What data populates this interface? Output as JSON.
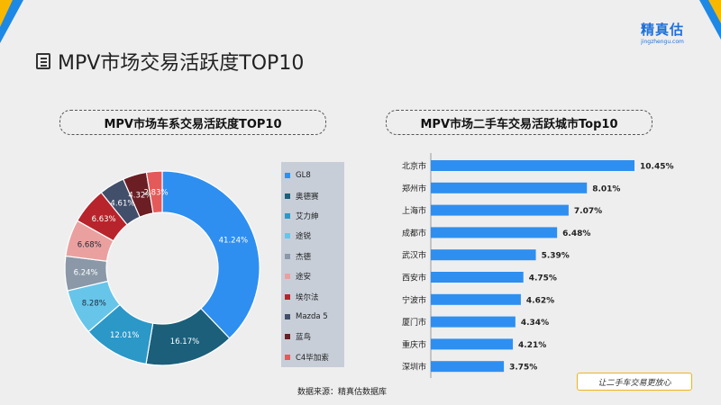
{
  "page": {
    "title": "MPV市场交易活跃度TOP10",
    "brand": "精真估",
    "brand_sub": "jingzhengu.com",
    "source": "数据来源：精真估数据库",
    "slogan": "让二手车交易更放心",
    "brand_blue": "#1e88e5",
    "brand_yellow": "#f9b800"
  },
  "chart_data": [
    {
      "type": "pie",
      "title": "MPV市场车系交易活跃度TOP10",
      "categories": [
        "GL8",
        "奥德赛",
        "艾力绅",
        "途锐",
        "杰德",
        "途安",
        "埃尔法",
        "Mazda 5",
        "蓝鸟",
        "C4毕加索"
      ],
      "values": [
        41.24,
        16.17,
        12.01,
        8.28,
        6.24,
        6.68,
        6.63,
        4.61,
        4.32,
        2.83
      ],
      "labels": [
        "41.24%",
        "16.17%",
        "12.01%",
        "8.28%",
        "6.24%",
        "6.68%",
        "6.63%",
        "4.61%",
        "4.32%",
        "2.83%"
      ],
      "colors": [
        "#2e8ff0",
        "#1b5f7a",
        "#2b98c8",
        "#67c5ea",
        "#8a98a8",
        "#eba0a0",
        "#b8242b",
        "#414f6b",
        "#6b1e24",
        "#e45a5a"
      ],
      "legend": "right",
      "donut": true
    },
    {
      "type": "bar",
      "orientation": "horizontal",
      "title": "MPV市场二手车交易活跃城市Top10",
      "categories": [
        "北京市",
        "郑州市",
        "上海市",
        "成都市",
        "武汉市",
        "西安市",
        "宁波市",
        "厦门市",
        "重庆市",
        "深圳市"
      ],
      "values": [
        10.45,
        8.01,
        7.07,
        6.48,
        5.39,
        4.75,
        4.62,
        4.34,
        4.21,
        3.75
      ],
      "labels": [
        "10.45%",
        "8.01%",
        "7.07%",
        "6.48%",
        "5.39%",
        "4.75%",
        "4.62%",
        "4.34%",
        "4.21%",
        "3.75%"
      ],
      "color": "#2e8ff0",
      "grid": false
    }
  ]
}
